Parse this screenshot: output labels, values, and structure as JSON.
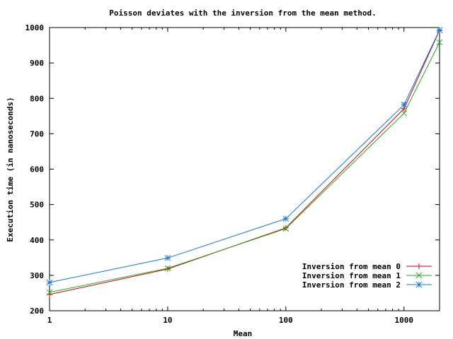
{
  "chart_data": {
    "type": "line",
    "title": "Poisson deviates with the inversion from the mean method.",
    "xlabel": "Mean",
    "ylabel": "Execution time (in nanoseconds)",
    "x_scale": "log",
    "xlim": [
      1,
      2000
    ],
    "ylim": [
      200,
      1000
    ],
    "x_ticks": [
      1,
      10,
      100,
      1000
    ],
    "x_tick_labels": [
      "1",
      "10",
      "100",
      "1000"
    ],
    "y_ticks": [
      200,
      300,
      400,
      500,
      600,
      700,
      800,
      900,
      1000
    ],
    "y_tick_labels": [
      "200",
      "300",
      "400",
      "500",
      "600",
      "700",
      "800",
      "900",
      "1000"
    ],
    "grid": false,
    "legend_position": "bottom-right",
    "x": [
      1,
      10,
      100,
      1000,
      2000
    ],
    "series": [
      {
        "name": "Inversion from mean 0",
        "marker": "plus",
        "color": "#cc0000",
        "values": [
          246,
          318,
          434,
          771,
          992
        ]
      },
      {
        "name": "Inversion from mean 1",
        "marker": "cross",
        "color": "#22aa22",
        "values": [
          252,
          320,
          432,
          758,
          958
        ]
      },
      {
        "name": "Inversion from mean 2",
        "marker": "star",
        "color": "#1177dd",
        "values": [
          280,
          349,
          460,
          782,
          993
        ]
      }
    ]
  }
}
